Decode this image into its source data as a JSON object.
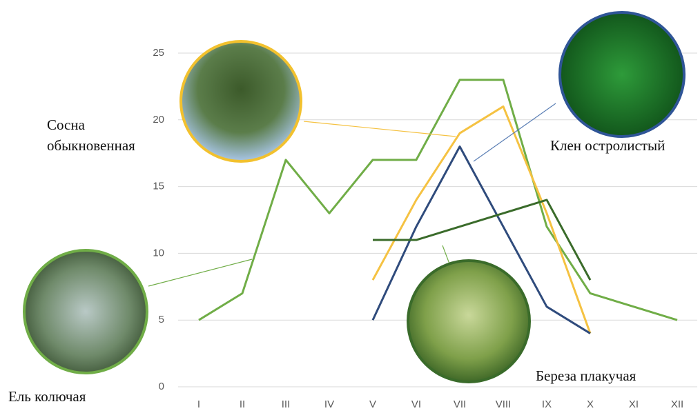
{
  "chart_data": {
    "type": "line",
    "categories": [
      "I",
      "II",
      "III",
      "IV",
      "V",
      "VI",
      "VII",
      "VIII",
      "IX",
      "X",
      "XI",
      "XII"
    ],
    "ylim": [
      0,
      25
    ],
    "yticks": [
      0,
      5,
      10,
      15,
      20,
      25
    ],
    "grid": true,
    "series": [
      {
        "name": "Ель колючая",
        "color": "#70ad47",
        "values": [
          5,
          7,
          17,
          13,
          17,
          17,
          23,
          23,
          12,
          7,
          6,
          5
        ]
      },
      {
        "name": "Сосна обыкновенная",
        "color": "#f5c242",
        "values": [
          null,
          null,
          null,
          null,
          8,
          14,
          19,
          21,
          13,
          4,
          null,
          null
        ]
      },
      {
        "name": "Клен остролистый",
        "color": "#2f4b7c",
        "values": [
          null,
          null,
          null,
          null,
          5,
          12,
          18,
          12,
          6,
          4,
          null,
          null
        ]
      },
      {
        "name": "Береза плакучая",
        "color": "#3a6b2a",
        "values": [
          null,
          null,
          null,
          null,
          11,
          11,
          12,
          13,
          14,
          8,
          null,
          null
        ]
      }
    ]
  }
}
